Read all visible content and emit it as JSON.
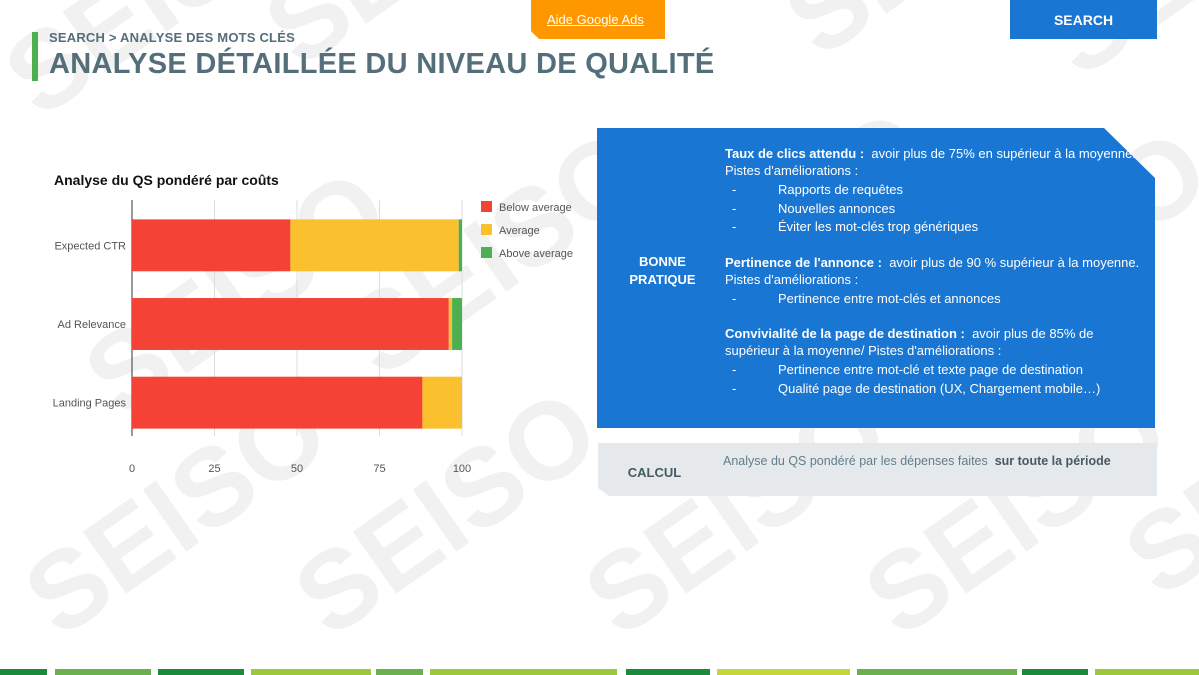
{
  "header": {
    "breadcrumb": "SEARCH > ANALYSE DES MOTS CLÉS",
    "title": "ANALYSE DÉTAILLÉE DU NIVEAU DE QUALITÉ",
    "help_link": "Aide Google Ads",
    "section_tab": "SEARCH"
  },
  "watermark_text": "SEISO",
  "chart_data": {
    "type": "bar",
    "orientation": "horizontal",
    "stacked": true,
    "title": "Analyse du QS pondéré par coûts",
    "categories": [
      "Expected CTR",
      "Ad Relevance",
      "Landing Pages"
    ],
    "series": [
      {
        "name": "Below average",
        "color": "#f44336",
        "values": [
          48,
          96,
          88
        ]
      },
      {
        "name": "Average",
        "color": "#fbc02d",
        "values": [
          51,
          1,
          12
        ]
      },
      {
        "name": "Above average",
        "color": "#4caf50",
        "values": [
          1,
          3,
          0
        ]
      }
    ],
    "xlim": [
      0,
      100
    ],
    "xticks": [
      "0",
      "25",
      "50",
      "75",
      "100"
    ],
    "grid": true,
    "legend_position": "right"
  },
  "best_practice": {
    "label_line1": "BONNE",
    "label_line2": "PRATIQUE",
    "sections": [
      {
        "heading": "Taux de clics attendu :",
        "text": "avoir plus de 75% en supérieur à la moyenne. Pistes d'améliorations :",
        "items": [
          "Rapports de requêtes",
          "Nouvelles annonces",
          "Éviter les mot-clés trop génériques"
        ]
      },
      {
        "heading": "Pertinence de l'annonce :",
        "text": "avoir plus de 90 % supérieur à la moyenne. Pistes d'améliorations :",
        "items": [
          "Pertinence entre mot-clés et annonces"
        ]
      },
      {
        "heading": "Convivialité de la page de destination :",
        "text": "avoir plus de 85% de supérieur à la moyenne/ Pistes d'améliorations :",
        "items": [
          "Pertinence entre mot-clé et texte page de destination",
          "Qualité page de destination (UX, Chargement mobile…)"
        ]
      }
    ]
  },
  "calcul": {
    "label": "CALCUL",
    "text": "Analyse du QS pondéré par les dépenses faites",
    "emphasis": "sur toute la période"
  },
  "colors": {
    "accent_green": "#4caf50",
    "brand_blue": "#1976d2",
    "orange": "#ff9800",
    "title_gray": "#546e7a"
  }
}
